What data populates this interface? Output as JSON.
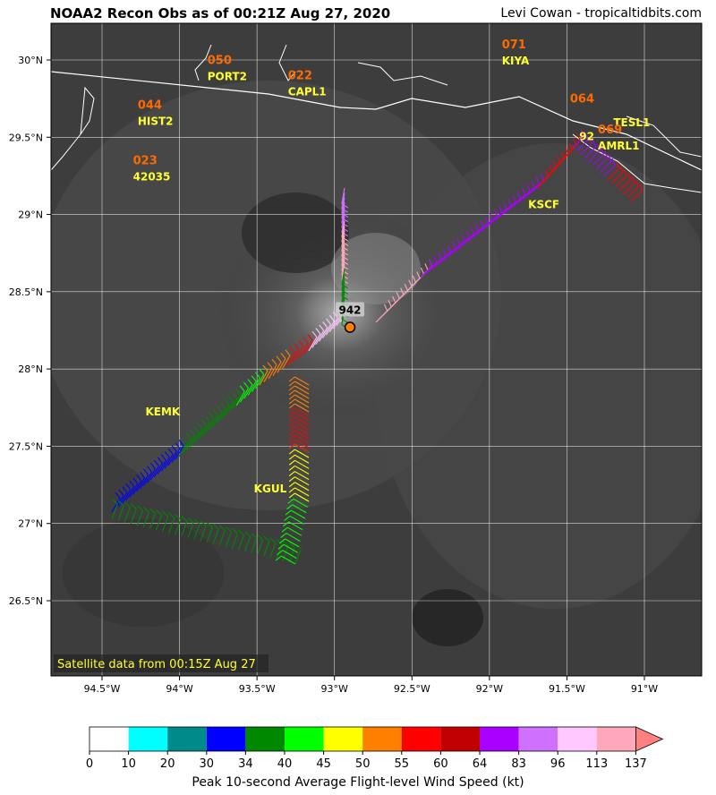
{
  "title": "NOAA2 Recon Obs as of 00:21Z Aug 27, 2020",
  "credit": "Levi Cowan - tropicaltidbits.com",
  "satellite_note": "Satellite data from 00:15Z Aug 27",
  "center_pressure": "942",
  "lat_labels": [
    "30°N",
    "29.5°N",
    "29°N",
    "28.5°N",
    "28°N",
    "27.5°N",
    "27°N",
    "26.5°N"
  ],
  "lon_labels": [
    "94.5°W",
    "94°W",
    "93.5°W",
    "93°W",
    "92.5°W",
    "92°W",
    "91.5°W",
    "91°W"
  ],
  "stations": [
    {
      "name": "KIYA",
      "value": "071",
      "lon": -91.92,
      "lat": 29.97
    },
    {
      "name": "PORT2",
      "value": "050",
      "lon": -93.82,
      "lat": 29.87
    },
    {
      "name": "CAPL1",
      "value": "022",
      "lon": -93.3,
      "lat": 29.77
    },
    {
      "name": "HIST2",
      "value": "044",
      "lon": -94.27,
      "lat": 29.58
    },
    {
      "name": "42035",
      "value": "023",
      "lon": -94.3,
      "lat": 29.22
    },
    {
      "name": "TESL1",
      "value": "",
      "lon": -91.2,
      "lat": 29.57
    },
    {
      "name": "AMRL1",
      "value": "069",
      "lon": -91.3,
      "lat": 29.42
    },
    {
      "name": "",
      "value": "064",
      "lon": -91.48,
      "lat": 29.62
    },
    {
      "name": "92",
      "value": "",
      "lon": -91.42,
      "lat": 29.48
    },
    {
      "name": "KSCF",
      "value": "",
      "lon": -91.75,
      "lat": 29.04
    },
    {
      "name": "KEMK",
      "value": "",
      "lon": -94.22,
      "lat": 27.7
    },
    {
      "name": "KGUL",
      "value": "",
      "lon": -93.52,
      "lat": 27.2
    }
  ],
  "storm_center": {
    "lon": -92.9,
    "lat": 28.27
  },
  "legend": {
    "label": "Peak 10-second Average Flight-level Wind Speed (kt)",
    "ticks": [
      "0",
      "10",
      "20",
      "30",
      "34",
      "40",
      "45",
      "50",
      "55",
      "60",
      "64",
      "83",
      "96",
      "113",
      "137"
    ],
    "colors": [
      "#ffffff",
      "#00ffff",
      "#008b8b",
      "#0000ff",
      "#008800",
      "#00ff00",
      "#ffff00",
      "#ff7f00",
      "#ff0000",
      "#c00000",
      "#aa00ff",
      "#d070ff",
      "#ffc8ff",
      "#ffa8bc"
    ],
    "extend_color": "#ff8080"
  }
}
